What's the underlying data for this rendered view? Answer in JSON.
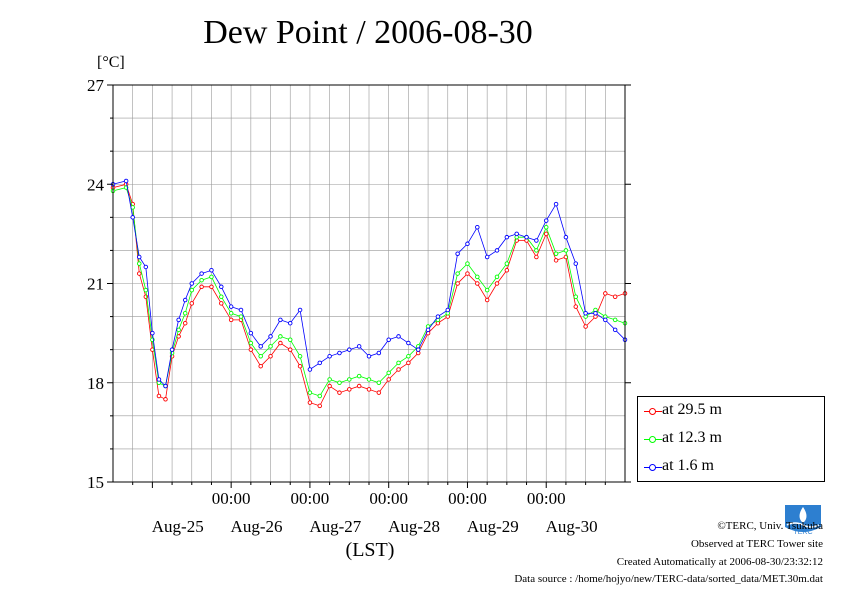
{
  "page": {
    "title": "Dew Point / 2006-08-30",
    "unit": "[°C]",
    "xlabel": "(LST)",
    "credits": {
      "copyright": "©TERC, Univ. Tsukuba",
      "observed": "Observed at TERC Tower site",
      "created": "Created Automatically at 2006-08-30/23:32:12",
      "source": "Data source : /home/hojyo/new/TERC-data/sorted_data/MET.30m.dat"
    },
    "logo_text": "TERC"
  },
  "chart_data": {
    "type": "line",
    "title": "Dew Point / 2006-08-30",
    "xlabel": "(LST)",
    "ylabel": "[°C]",
    "xlim": [
      "Aug-24 12:00",
      "Aug-31 00:00"
    ],
    "ylim": [
      15,
      27
    ],
    "yticks": [
      15,
      18,
      21,
      24,
      27
    ],
    "xticks": [
      "00:00",
      "00:00",
      "00:00",
      "00:00",
      "00:00"
    ],
    "date_labels": [
      "Aug-25",
      "Aug-26",
      "Aug-27",
      "Aug-28",
      "Aug-29",
      "Aug-30"
    ],
    "grid": true,
    "legend_position": "lower-right outside",
    "x_hours": [
      0,
      4,
      6,
      8,
      10,
      12,
      14,
      16,
      18,
      20,
      22,
      24,
      27,
      30,
      33,
      36,
      39,
      42,
      45,
      48,
      51,
      54,
      57,
      60,
      63,
      66,
      69,
      72,
      75,
      78,
      81,
      84,
      87,
      90,
      93,
      96,
      99,
      102,
      105,
      108,
      111,
      114,
      117,
      120,
      123,
      126,
      129,
      132,
      135,
      138,
      141,
      144,
      147,
      150,
      153,
      156
    ],
    "series": [
      {
        "name": "at 29.5 m",
        "color": "#ff0000",
        "values": [
          23.9,
          24.0,
          23.4,
          21.3,
          20.6,
          19.0,
          17.6,
          17.5,
          18.8,
          19.4,
          19.8,
          20.4,
          20.9,
          20.9,
          20.4,
          19.9,
          19.9,
          19.0,
          18.5,
          18.8,
          19.2,
          19.0,
          18.5,
          17.4,
          17.3,
          17.9,
          17.7,
          17.8,
          17.9,
          17.8,
          17.7,
          18.1,
          18.4,
          18.6,
          18.9,
          19.5,
          19.8,
          20.0,
          21.0,
          21.3,
          21.0,
          20.5,
          21.0,
          21.4,
          22.3,
          22.3,
          21.8,
          22.5,
          21.7,
          21.8,
          20.3,
          19.7,
          20.0,
          20.7,
          20.6,
          20.7
        ]
      },
      {
        "name": "at 12.3 m",
        "color": "#00ff00",
        "values": [
          23.8,
          23.9,
          23.3,
          21.6,
          20.8,
          19.3,
          18.0,
          17.9,
          18.9,
          19.6,
          20.1,
          20.8,
          21.1,
          21.2,
          20.6,
          20.1,
          20.0,
          19.2,
          18.8,
          19.1,
          19.4,
          19.3,
          18.8,
          17.7,
          17.6,
          18.1,
          18.0,
          18.1,
          18.2,
          18.1,
          18.0,
          18.3,
          18.6,
          18.8,
          19.1,
          19.7,
          19.9,
          20.1,
          21.3,
          21.6,
          21.2,
          20.8,
          21.2,
          21.6,
          22.4,
          22.4,
          22.0,
          22.7,
          21.9,
          22.0,
          20.6,
          20.0,
          20.2,
          20.0,
          19.9,
          19.8
        ]
      },
      {
        "name": "at 1.6 m",
        "color": "#0000ff",
        "values": [
          24.0,
          24.1,
          23.0,
          21.8,
          21.5,
          19.5,
          18.1,
          17.9,
          19.0,
          19.9,
          20.5,
          21.0,
          21.3,
          21.4,
          20.9,
          20.3,
          20.2,
          19.5,
          19.1,
          19.4,
          19.9,
          19.8,
          20.2,
          18.4,
          18.6,
          18.8,
          18.9,
          19.0,
          19.1,
          18.8,
          18.9,
          19.3,
          19.4,
          19.2,
          19.0,
          19.6,
          20.0,
          20.2,
          21.9,
          22.2,
          22.7,
          21.8,
          22.0,
          22.4,
          22.5,
          22.4,
          22.3,
          22.9,
          23.4,
          22.4,
          21.6,
          20.1,
          20.1,
          19.9,
          19.6,
          19.3
        ]
      }
    ]
  }
}
